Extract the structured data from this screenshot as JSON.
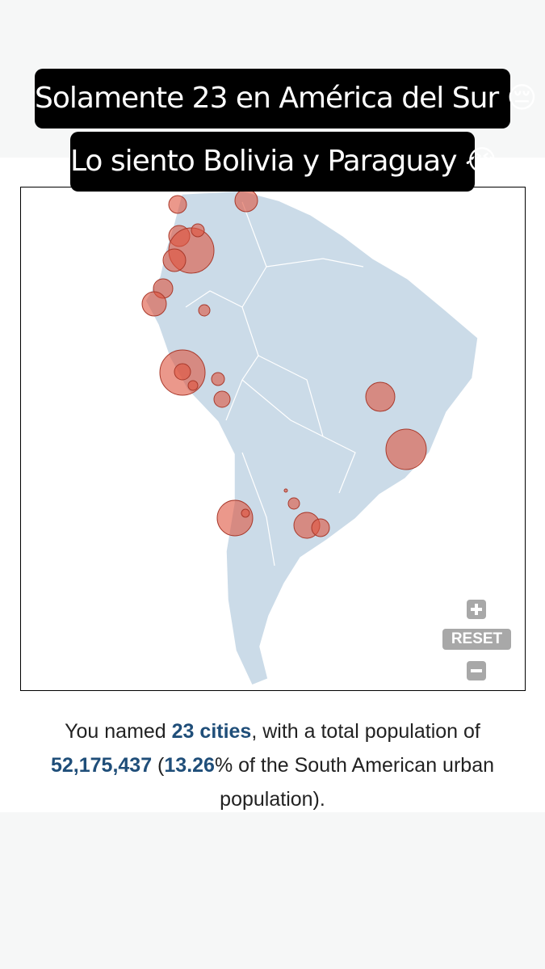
{
  "caption": {
    "line1": "Solamente 23 en América del Sur 😔",
    "line2": "Lo siento Bolivia y Paraguay 😭"
  },
  "controls": {
    "reset": "RESET"
  },
  "summary": {
    "p1": "You named ",
    "count": "23 cities",
    "p2": ", with a total population of ",
    "population": "52,175,437",
    "p3": " (",
    "percent": "13.26",
    "p4": "% of the South American urban population)."
  }
}
